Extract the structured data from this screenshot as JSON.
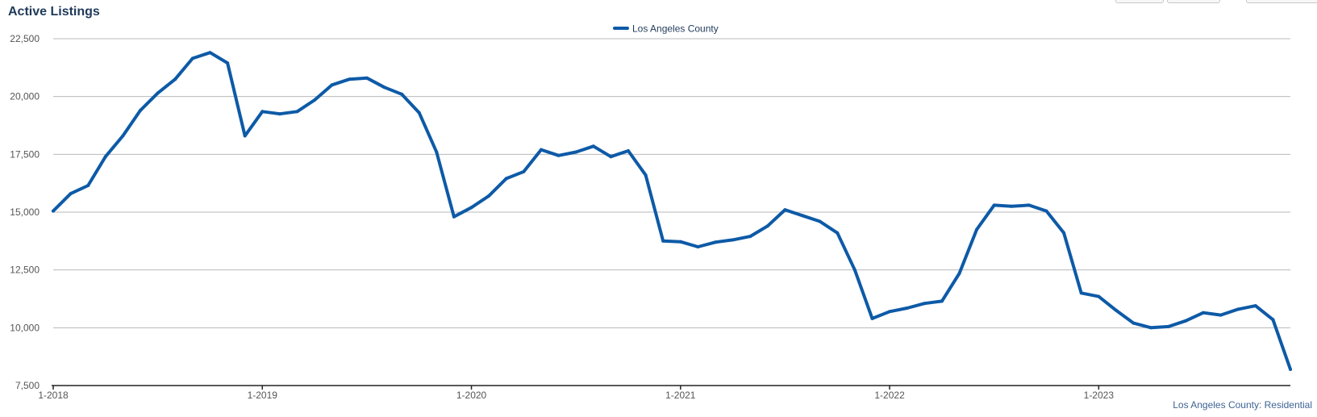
{
  "chart_data": {
    "type": "line",
    "title": "Active Listings",
    "xlabel": "",
    "ylabel": "",
    "ylim": [
      7500,
      22500
    ],
    "yticks": [
      "7,500",
      "10,000",
      "12,500",
      "15,000",
      "17,500",
      "20,000",
      "22,500"
    ],
    "ytick_values": [
      7500,
      10000,
      12500,
      15000,
      17500,
      20000,
      22500
    ],
    "xticks": [
      "1-2018",
      "1-2019",
      "1-2020",
      "1-2021",
      "1-2022",
      "1-2023"
    ],
    "xlim": [
      "1-2018",
      "12-2023"
    ],
    "grid": "horizontal",
    "legend_position": "top-center",
    "x": [
      "1-2018",
      "2-2018",
      "3-2018",
      "4-2018",
      "5-2018",
      "6-2018",
      "7-2018",
      "8-2018",
      "9-2018",
      "10-2018",
      "11-2018",
      "12-2018",
      "1-2019",
      "2-2019",
      "3-2019",
      "4-2019",
      "5-2019",
      "6-2019",
      "7-2019",
      "8-2019",
      "9-2019",
      "10-2019",
      "11-2019",
      "12-2019",
      "1-2020",
      "2-2020",
      "3-2020",
      "4-2020",
      "5-2020",
      "6-2020",
      "7-2020",
      "8-2020",
      "9-2020",
      "10-2020",
      "11-2020",
      "12-2020",
      "1-2021",
      "2-2021",
      "3-2021",
      "4-2021",
      "5-2021",
      "6-2021",
      "7-2021",
      "8-2021",
      "9-2021",
      "10-2021",
      "11-2021",
      "12-2021",
      "1-2022",
      "2-2022",
      "3-2022",
      "4-2022",
      "5-2022",
      "6-2022",
      "7-2022",
      "8-2022",
      "9-2022",
      "10-2022",
      "11-2022",
      "12-2022",
      "1-2023",
      "2-2023",
      "3-2023",
      "4-2023",
      "5-2023",
      "6-2023",
      "7-2023",
      "8-2023",
      "9-2023",
      "10-2023",
      "11-2023",
      "12-2023"
    ],
    "series": [
      {
        "name": "Los Angeles County",
        "color": "#0d5aa7",
        "values": [
          15050,
          15800,
          16150,
          17400,
          18300,
          19400,
          20150,
          20750,
          21650,
          21900,
          21450,
          18300,
          19350,
          19250,
          19350,
          19850,
          20500,
          20750,
          20800,
          20400,
          20100,
          19300,
          17600,
          14800,
          15200,
          15700,
          16450,
          16750,
          17700,
          17450,
          17600,
          17850,
          17400,
          17650,
          16600,
          13750,
          13720,
          13500,
          13700,
          13800,
          13950,
          14400,
          15100,
          14850,
          14600,
          14100,
          12500,
          10400,
          10700,
          10850,
          11050,
          11150,
          12350,
          14250,
          15300,
          15250,
          15300,
          15050,
          14100,
          11500,
          11350,
          10750,
          10200,
          10000,
          10050,
          10300,
          10650,
          10550,
          10800,
          10950,
          10350,
          8200
        ]
      }
    ]
  },
  "footer": {
    "source_note": "Los Angeles County: Residential"
  }
}
